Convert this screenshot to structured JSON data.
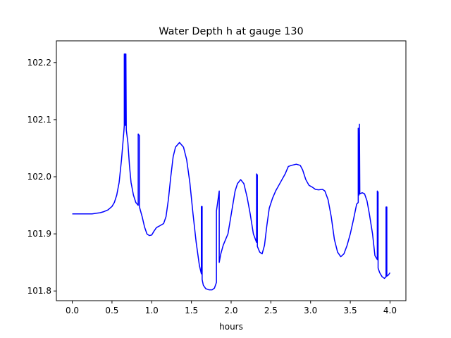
{
  "chart_data": {
    "type": "line",
    "title": "Water Depth h at gauge 130",
    "xlabel": "hours",
    "ylabel": "",
    "xlim": [
      -0.2,
      4.2
    ],
    "ylim": [
      101.783,
      102.238
    ],
    "xticks": [
      0.0,
      0.5,
      1.0,
      1.5,
      2.0,
      2.5,
      3.0,
      3.5,
      4.0
    ],
    "xtick_labels": [
      "0.0",
      "0.5",
      "1.0",
      "1.5",
      "2.0",
      "2.5",
      "3.0",
      "3.5",
      "4.0"
    ],
    "yticks": [
      101.8,
      101.9,
      102.0,
      102.1,
      102.2
    ],
    "ytick_labels": [
      "101.8",
      "101.9",
      "102.0",
      "102.1",
      "102.2"
    ],
    "grid": false,
    "legend": "none",
    "series": [
      {
        "color": "#0000ff",
        "points": [
          [
            0.0,
            101.935
          ],
          [
            0.1,
            101.935
          ],
          [
            0.2,
            101.935
          ],
          [
            0.25,
            101.935
          ],
          [
            0.3,
            101.936
          ],
          [
            0.35,
            101.937
          ],
          [
            0.4,
            101.939
          ],
          [
            0.45,
            101.942
          ],
          [
            0.5,
            101.948
          ],
          [
            0.53,
            101.955
          ],
          [
            0.56,
            101.968
          ],
          [
            0.59,
            101.99
          ],
          [
            0.62,
            102.03
          ],
          [
            0.65,
            102.08
          ],
          [
            0.655,
            102.09
          ],
          [
            0.655,
            102.215
          ],
          [
            0.66,
            102.09
          ],
          [
            0.665,
            102.215
          ],
          [
            0.67,
            102.09
          ],
          [
            0.675,
            102.215
          ],
          [
            0.68,
            102.082
          ],
          [
            0.7,
            102.06
          ],
          [
            0.72,
            102.02
          ],
          [
            0.74,
            101.99
          ],
          [
            0.77,
            101.968
          ],
          [
            0.8,
            101.955
          ],
          [
            0.83,
            101.95
          ],
          [
            0.83,
            102.075
          ],
          [
            0.845,
            102.072
          ],
          [
            0.845,
            101.95
          ],
          [
            0.85,
            101.945
          ],
          [
            0.88,
            101.93
          ],
          [
            0.91,
            101.912
          ],
          [
            0.94,
            101.9
          ],
          [
            0.97,
            101.897
          ],
          [
            1.0,
            101.898
          ],
          [
            1.03,
            101.905
          ],
          [
            1.06,
            101.911
          ],
          [
            1.1,
            101.914
          ],
          [
            1.15,
            101.918
          ],
          [
            1.18,
            101.93
          ],
          [
            1.21,
            101.96
          ],
          [
            1.24,
            102.0
          ],
          [
            1.27,
            102.035
          ],
          [
            1.3,
            102.052
          ],
          [
            1.35,
            102.06
          ],
          [
            1.4,
            102.052
          ],
          [
            1.44,
            102.03
          ],
          [
            1.48,
            101.99
          ],
          [
            1.52,
            101.935
          ],
          [
            1.56,
            101.885
          ],
          [
            1.6,
            101.845
          ],
          [
            1.625,
            101.83
          ],
          [
            1.625,
            101.948
          ],
          [
            1.635,
            101.948
          ],
          [
            1.635,
            101.82
          ],
          [
            1.65,
            101.81
          ],
          [
            1.68,
            101.804
          ],
          [
            1.72,
            101.802
          ],
          [
            1.76,
            101.802
          ],
          [
            1.79,
            101.805
          ],
          [
            1.815,
            101.815
          ],
          [
            1.815,
            101.94
          ],
          [
            1.83,
            101.955
          ],
          [
            1.85,
            101.975
          ],
          [
            1.85,
            101.85
          ],
          [
            1.87,
            101.865
          ],
          [
            1.9,
            101.88
          ],
          [
            1.93,
            101.89
          ],
          [
            1.96,
            101.9
          ],
          [
            1.99,
            101.925
          ],
          [
            2.02,
            101.95
          ],
          [
            2.05,
            101.975
          ],
          [
            2.08,
            101.988
          ],
          [
            2.12,
            101.995
          ],
          [
            2.16,
            101.988
          ],
          [
            2.2,
            101.965
          ],
          [
            2.24,
            101.935
          ],
          [
            2.28,
            101.9
          ],
          [
            2.32,
            101.885
          ],
          [
            2.32,
            102.005
          ],
          [
            2.33,
            102.003
          ],
          [
            2.33,
            101.878
          ],
          [
            2.36,
            101.868
          ],
          [
            2.39,
            101.865
          ],
          [
            2.42,
            101.88
          ],
          [
            2.45,
            101.915
          ],
          [
            2.48,
            101.945
          ],
          [
            2.52,
            101.962
          ],
          [
            2.56,
            101.975
          ],
          [
            2.6,
            101.985
          ],
          [
            2.64,
            101.995
          ],
          [
            2.68,
            102.005
          ],
          [
            2.72,
            102.018
          ],
          [
            2.76,
            102.02
          ],
          [
            2.82,
            102.022
          ],
          [
            2.87,
            102.02
          ],
          [
            2.9,
            102.012
          ],
          [
            2.94,
            101.995
          ],
          [
            2.98,
            101.985
          ],
          [
            3.02,
            101.982
          ],
          [
            3.06,
            101.978
          ],
          [
            3.1,
            101.977
          ],
          [
            3.15,
            101.978
          ],
          [
            3.18,
            101.975
          ],
          [
            3.22,
            101.96
          ],
          [
            3.26,
            101.93
          ],
          [
            3.3,
            101.89
          ],
          [
            3.34,
            101.868
          ],
          [
            3.38,
            101.86
          ],
          [
            3.42,
            101.865
          ],
          [
            3.46,
            101.88
          ],
          [
            3.5,
            101.9
          ],
          [
            3.54,
            101.925
          ],
          [
            3.58,
            101.952
          ],
          [
            3.6,
            101.955
          ],
          [
            3.6,
            102.085
          ],
          [
            3.61,
            101.968
          ],
          [
            3.615,
            102.092
          ],
          [
            3.62,
            101.97
          ],
          [
            3.65,
            101.972
          ],
          [
            3.68,
            101.97
          ],
          [
            3.71,
            101.958
          ],
          [
            3.74,
            101.935
          ],
          [
            3.78,
            101.9
          ],
          [
            3.81,
            101.862
          ],
          [
            3.84,
            101.855
          ],
          [
            3.84,
            101.975
          ],
          [
            3.85,
            101.973
          ],
          [
            3.85,
            101.84
          ],
          [
            3.87,
            101.832
          ],
          [
            3.9,
            101.825
          ],
          [
            3.93,
            101.822
          ],
          [
            3.95,
            101.825
          ],
          [
            3.95,
            101.947
          ],
          [
            3.96,
            101.947
          ],
          [
            3.96,
            101.826
          ],
          [
            3.98,
            101.828
          ],
          [
            4.0,
            101.832
          ]
        ]
      }
    ]
  }
}
